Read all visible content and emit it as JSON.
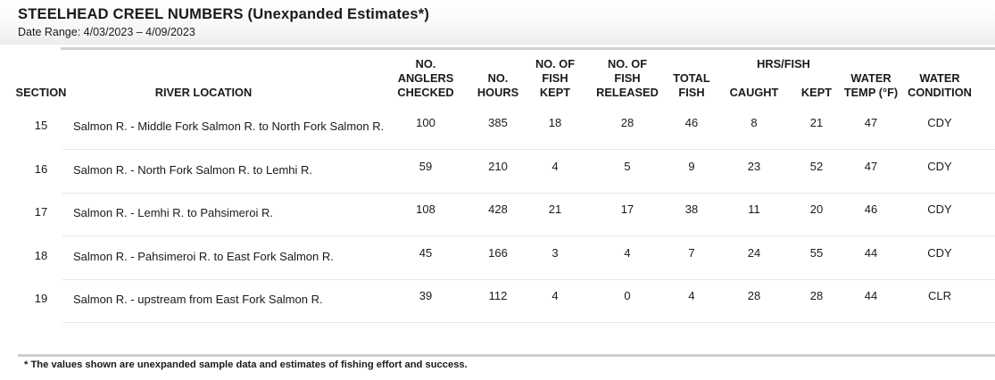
{
  "report": {
    "title": "STEELHEAD CREEL NUMBERS  (Unexpanded Estimates*)",
    "date_range": "Date Range: 4/03/2023 – 4/09/2023",
    "footnote": "* The values shown are unexpanded sample data and estimates of fishing effort and success."
  },
  "columns": {
    "section": [
      "SECTION"
    ],
    "location": [
      "RIVER LOCATION"
    ],
    "anglers": [
      "NO.",
      "ANGLERS",
      "CHECKED"
    ],
    "hours": [
      "NO.",
      "HOURS"
    ],
    "kept": [
      "NO. OF",
      "FISH",
      "KEPT"
    ],
    "released": [
      "NO. OF",
      "FISH",
      "RELEASED"
    ],
    "total": [
      "TOTAL",
      "FISH"
    ],
    "hrs_fish_group": "HRS/FISH",
    "caught": [
      "CAUGHT"
    ],
    "hf_kept": [
      "KEPT"
    ],
    "temp": [
      "WATER",
      "TEMP (°F)"
    ],
    "condition": [
      "WATER",
      "CONDITION"
    ]
  },
  "rows": [
    {
      "section": "15",
      "location": "Salmon R. - Middle Fork Salmon R. to North Fork Salmon R.",
      "anglers": "100",
      "hours": "385",
      "kept": "18",
      "released": "28",
      "total": "46",
      "caught": "8",
      "hf_kept": "21",
      "temp": "47",
      "condition": "CDY"
    },
    {
      "section": "16",
      "location": "Salmon R. - North Fork Salmon R. to Lemhi R.",
      "anglers": "59",
      "hours": "210",
      "kept": "4",
      "released": "5",
      "total": "9",
      "caught": "23",
      "hf_kept": "52",
      "temp": "47",
      "condition": "CDY"
    },
    {
      "section": "17",
      "location": "Salmon R. - Lemhi R. to Pahsimeroi R.",
      "anglers": "108",
      "hours": "428",
      "kept": "21",
      "released": "17",
      "total": "38",
      "caught": "11",
      "hf_kept": "20",
      "temp": "46",
      "condition": "CDY"
    },
    {
      "section": "18",
      "location": "Salmon R. - Pahsimeroi R. to East Fork Salmon R.",
      "anglers": "45",
      "hours": "166",
      "kept": "3",
      "released": "4",
      "total": "7",
      "caught": "24",
      "hf_kept": "55",
      "temp": "44",
      "condition": "CDY"
    },
    {
      "section": "19",
      "location": "Salmon R. - upstream from East Fork Salmon R.",
      "anglers": "39",
      "hours": "112",
      "kept": "4",
      "released": "0",
      "total": "4",
      "caught": "28",
      "hf_kept": "28",
      "temp": "44",
      "condition": "CLR"
    }
  ]
}
